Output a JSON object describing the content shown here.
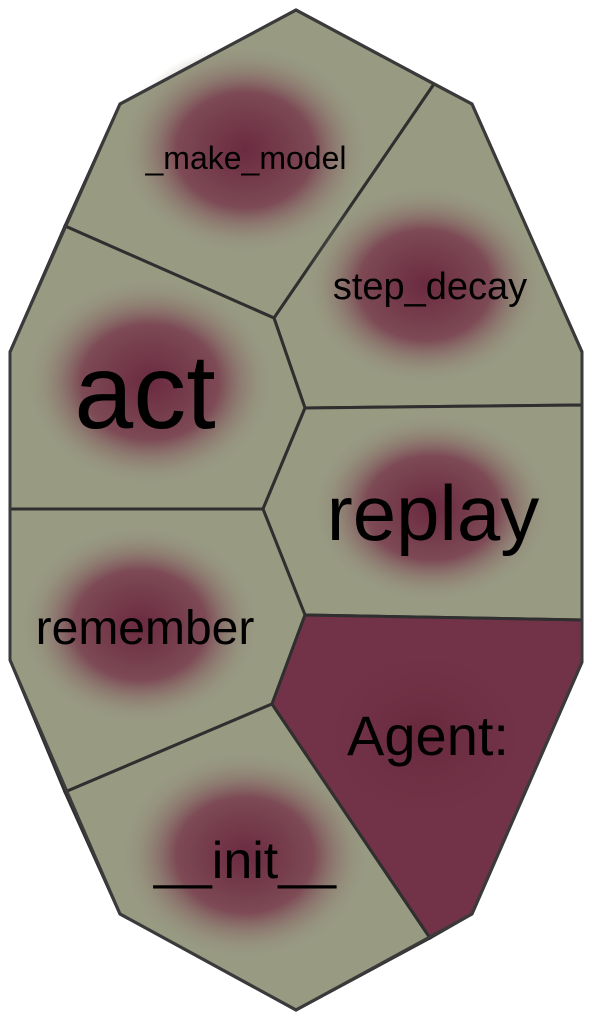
{
  "diagram": {
    "colors": {
      "cell_fill": "#989a82",
      "highlight": "#6b2a40",
      "agent_fill": "#723348",
      "stroke": "#2f2f2f",
      "text": "#000000"
    },
    "cells": [
      {
        "id": "make_model",
        "label": "_make_model",
        "active": false
      },
      {
        "id": "step_decay",
        "label": "step_decay",
        "active": false
      },
      {
        "id": "act",
        "label": "act",
        "active": false
      },
      {
        "id": "replay",
        "label": "replay",
        "active": false
      },
      {
        "id": "remember",
        "label": "remember",
        "active": false
      },
      {
        "id": "init",
        "label": "__init__",
        "active": false
      },
      {
        "id": "agent",
        "label": "Agent:",
        "active": true
      }
    ]
  }
}
